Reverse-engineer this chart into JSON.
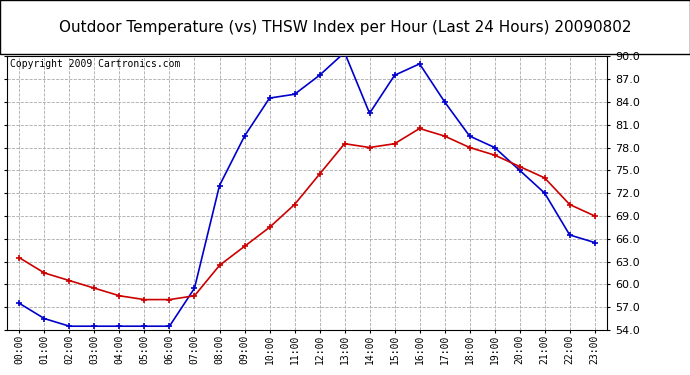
{
  "title": "Outdoor Temperature (vs) THSW Index per Hour (Last 24 Hours) 20090802",
  "copyright": "Copyright 2009 Cartronics.com",
  "hours": [
    "00:00",
    "01:00",
    "02:00",
    "03:00",
    "04:00",
    "05:00",
    "06:00",
    "07:00",
    "08:00",
    "09:00",
    "10:00",
    "11:00",
    "12:00",
    "13:00",
    "14:00",
    "15:00",
    "16:00",
    "17:00",
    "18:00",
    "19:00",
    "20:00",
    "21:00",
    "22:00",
    "23:00"
  ],
  "temp": [
    63.5,
    61.5,
    60.5,
    59.5,
    58.5,
    58.0,
    58.0,
    58.5,
    62.5,
    65.0,
    67.5,
    70.5,
    74.5,
    78.5,
    78.0,
    78.5,
    80.5,
    79.5,
    78.0,
    77.0,
    75.5,
    74.0,
    70.5,
    69.0
  ],
  "thsw": [
    57.5,
    55.5,
    54.5,
    54.5,
    54.5,
    54.5,
    54.5,
    59.5,
    73.0,
    79.5,
    84.5,
    85.0,
    87.5,
    90.5,
    82.5,
    87.5,
    89.0,
    84.0,
    79.5,
    78.0,
    75.0,
    72.0,
    66.5,
    65.5
  ],
  "temp_color": "#cc0000",
  "thsw_color": "#0000cc",
  "ylim_min": 54.0,
  "ylim_max": 90.0,
  "ytick_step": 3.0,
  "bg_color": "#ffffff",
  "plot_bg_color": "#ffffff",
  "grid_color": "#aaaaaa",
  "title_fontsize": 11,
  "copyright_fontsize": 7,
  "marker_size": 5,
  "line_width": 1.2
}
